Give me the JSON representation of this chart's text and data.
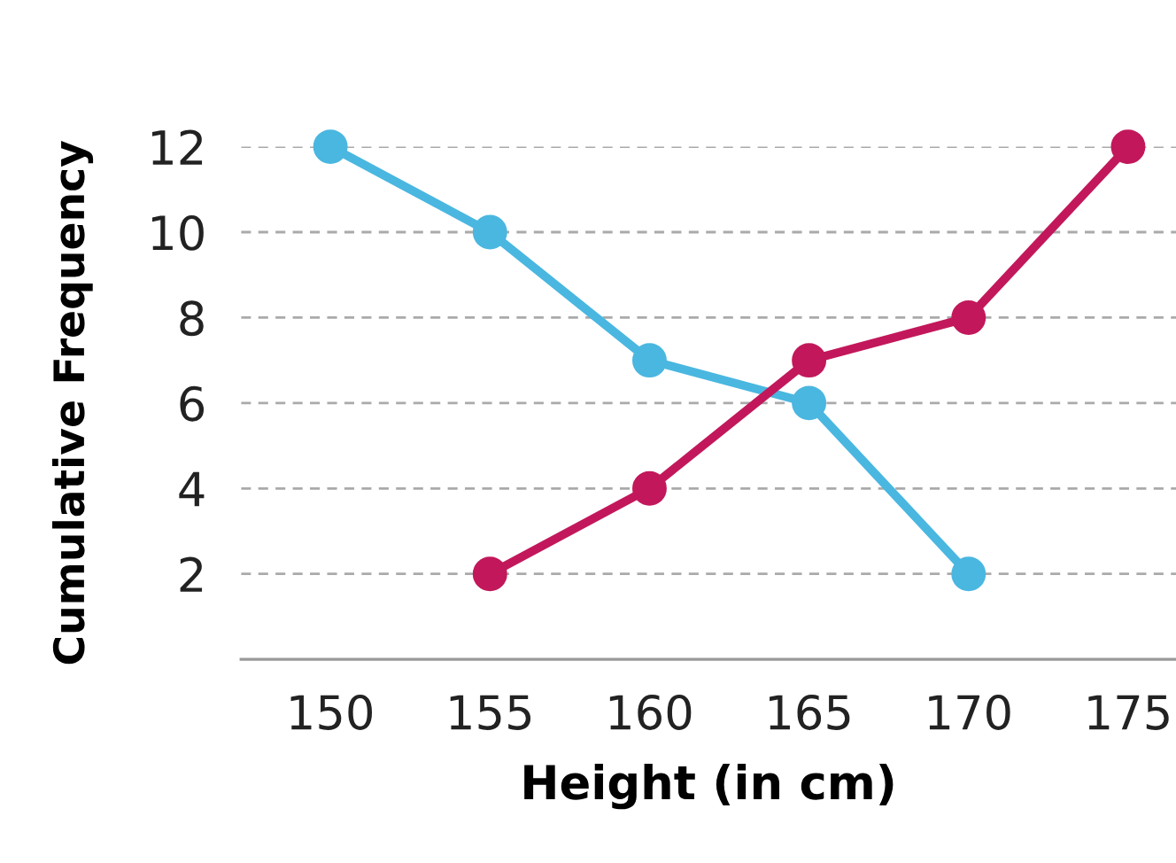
{
  "chart_data": {
    "type": "line",
    "xlabel": "Height (in cm)",
    "ylabel": "Cumulative Frequency",
    "series": [
      {
        "color": "#4ab7e0",
        "x": [
          150,
          155,
          160,
          165,
          170
        ],
        "values": [
          12,
          10,
          7,
          6,
          2
        ]
      },
      {
        "color": "#c2185b",
        "x": [
          155,
          160,
          165,
          170,
          175
        ],
        "values": [
          2,
          4,
          7,
          8,
          12
        ]
      }
    ],
    "xlim": [
      147.2,
      176.5
    ],
    "xticks": [
      150,
      155,
      160,
      165,
      170,
      175
    ],
    "ylim": [
      0,
      12
    ],
    "yticks": [
      2,
      4,
      6,
      8,
      10,
      12
    ],
    "grid": "y",
    "marker": "circle",
    "line_style": "solid"
  }
}
